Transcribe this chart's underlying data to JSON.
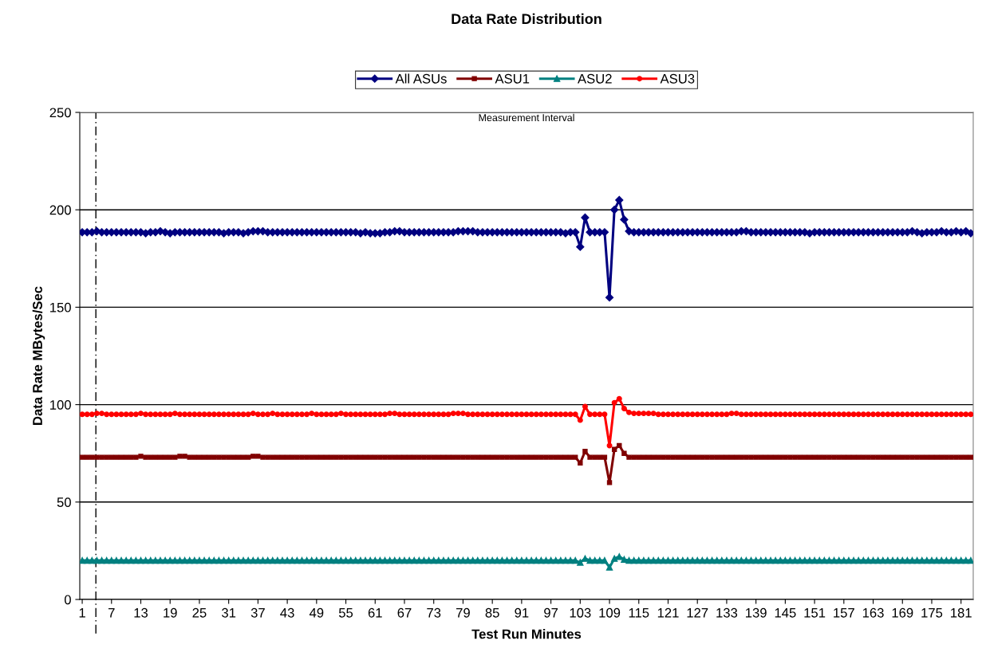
{
  "chart_data": {
    "type": "line",
    "title": "Data Rate Distribution",
    "xlabel": "Test Run Minutes",
    "ylabel": "Data Rate MBytes/Sec",
    "x": [
      1,
      2,
      3,
      4,
      5,
      6,
      7,
      8,
      9,
      10,
      11,
      12,
      13,
      14,
      15,
      16,
      17,
      18,
      19,
      20,
      21,
      22,
      23,
      24,
      25,
      26,
      27,
      28,
      29,
      30,
      31,
      32,
      33,
      34,
      35,
      36,
      37,
      38,
      39,
      40,
      41,
      42,
      43,
      44,
      45,
      46,
      47,
      48,
      49,
      50,
      51,
      52,
      53,
      54,
      55,
      56,
      57,
      58,
      59,
      60,
      61,
      62,
      63,
      64,
      65,
      66,
      67,
      68,
      69,
      70,
      71,
      72,
      73,
      74,
      75,
      76,
      77,
      78,
      79,
      80,
      81,
      82,
      83,
      84,
      85,
      86,
      87,
      88,
      89,
      90,
      91,
      92,
      93,
      94,
      95,
      96,
      97,
      98,
      99,
      100,
      101,
      102,
      103,
      104,
      105,
      106,
      107,
      108,
      109,
      110,
      111,
      112,
      113,
      114,
      115,
      116,
      117,
      118,
      119,
      120,
      121,
      122,
      123,
      124,
      125,
      126,
      127,
      128,
      129,
      130,
      131,
      132,
      133,
      134,
      135,
      136,
      137,
      138,
      139,
      140,
      141,
      142,
      143,
      144,
      145,
      146,
      147,
      148,
      149,
      150,
      151,
      152,
      153,
      154,
      155,
      156,
      157,
      158,
      159,
      160,
      161,
      162,
      163,
      164,
      165,
      166,
      167,
      168,
      169,
      170,
      171,
      172,
      173,
      174,
      175,
      176,
      177,
      178,
      179,
      180,
      181,
      182,
      183
    ],
    "xlim": [
      0.5,
      183.5
    ],
    "xticks": [
      1,
      7,
      13,
      19,
      25,
      31,
      37,
      43,
      49,
      55,
      61,
      67,
      73,
      79,
      85,
      91,
      97,
      103,
      109,
      115,
      121,
      127,
      133,
      139,
      145,
      151,
      157,
      163,
      169,
      175,
      181
    ],
    "ylim": [
      0,
      250
    ],
    "yticks": [
      0,
      50,
      100,
      150,
      200,
      250
    ],
    "grid": "y",
    "legend": "top",
    "ref_lines": [
      {
        "axis": "x",
        "value": 3.8,
        "color": "#000000",
        "line_style": "dashdot"
      }
    ],
    "annotations": [
      "Measurement Interval"
    ],
    "series": [
      {
        "name": "All ASUs",
        "color": "#000080",
        "marker": "diamond",
        "values": [
          188.5,
          188.5,
          188.5,
          189,
          188.5,
          188.5,
          188.5,
          188.5,
          188.5,
          188.5,
          188.5,
          188.5,
          188.5,
          188,
          188.5,
          188.5,
          189,
          188.5,
          188,
          188.5,
          188.5,
          188.5,
          188.5,
          188.5,
          188.5,
          188.5,
          188.5,
          188.5,
          188.5,
          188,
          188.5,
          188.5,
          188.5,
          188,
          188.5,
          189,
          189,
          189,
          188.5,
          188.5,
          188.5,
          188.5,
          188.5,
          188.5,
          188.5,
          188.5,
          188.5,
          188.5,
          188.5,
          188.5,
          188.5,
          188.5,
          188.5,
          188.5,
          188.5,
          188.5,
          188.5,
          188,
          188.5,
          188,
          188,
          188,
          188.5,
          188.5,
          189,
          189,
          188.5,
          188.5,
          188.5,
          188.5,
          188.5,
          188.5,
          188.5,
          188.5,
          188.5,
          188.5,
          188.5,
          189,
          189,
          189,
          189,
          188.5,
          188.5,
          188.5,
          188.5,
          188.5,
          188.5,
          188.5,
          188.5,
          188.5,
          188.5,
          188.5,
          188.5,
          188.5,
          188.5,
          188.5,
          188.5,
          188.5,
          188.5,
          188,
          188.5,
          188.5,
          181,
          196,
          188.5,
          188.5,
          188.5,
          188.5,
          155,
          200,
          205,
          195,
          189,
          188.5,
          188.5,
          188.5,
          188.5,
          188.5,
          188.5,
          188.5,
          188.5,
          188.5,
          188.5,
          188.5,
          188.5,
          188.5,
          188.5,
          188.5,
          188.5,
          188.5,
          188.5,
          188.5,
          188.5,
          188.5,
          188.5,
          189,
          189,
          188.5,
          188.5,
          188.5,
          188.5,
          188.5,
          188.5,
          188.5,
          188.5,
          188.5,
          188.5,
          188.5,
          188.5,
          188,
          188.5,
          188.5,
          188.5,
          188.5,
          188.5,
          188.5,
          188.5,
          188.5,
          188.5,
          188.5,
          188.5,
          188.5,
          188.5,
          188.5,
          188.5,
          188.5,
          188.5,
          188.5,
          188.5,
          188.5,
          189,
          188.5,
          188,
          188.5,
          188.5,
          188.5,
          189,
          188.5,
          188.5,
          189,
          188.5,
          189,
          188
        ]
      },
      {
        "name": "ASU1",
        "color": "#800000",
        "marker": "square",
        "values": [
          73,
          73,
          73,
          73,
          73,
          73,
          73,
          73,
          73,
          73,
          73,
          73,
          73.5,
          73,
          73,
          73,
          73,
          73,
          73,
          73,
          73.5,
          73.5,
          73,
          73,
          73,
          73,
          73,
          73,
          73,
          73,
          73,
          73,
          73,
          73,
          73,
          73.5,
          73.5,
          73,
          73,
          73,
          73,
          73,
          73,
          73,
          73,
          73,
          73,
          73,
          73,
          73,
          73,
          73,
          73,
          73,
          73,
          73,
          73,
          73,
          73,
          73,
          73,
          73,
          73,
          73,
          73,
          73,
          73,
          73,
          73,
          73,
          73,
          73,
          73,
          73,
          73,
          73,
          73,
          73,
          73,
          73,
          73,
          73,
          73,
          73,
          73,
          73,
          73,
          73,
          73,
          73,
          73,
          73,
          73,
          73,
          73,
          73,
          73,
          73,
          73,
          73,
          73,
          73,
          70,
          76,
          73,
          73,
          73,
          73,
          60,
          77,
          79,
          75,
          73,
          73,
          73,
          73,
          73,
          73,
          73,
          73,
          73,
          73,
          73,
          73,
          73,
          73,
          73,
          73,
          73,
          73,
          73,
          73,
          73,
          73,
          73,
          73,
          73,
          73,
          73,
          73,
          73,
          73,
          73,
          73,
          73,
          73,
          73,
          73,
          73,
          73,
          73,
          73,
          73,
          73,
          73,
          73,
          73,
          73,
          73,
          73,
          73,
          73,
          73,
          73,
          73,
          73,
          73,
          73,
          73,
          73,
          73,
          73,
          73,
          73,
          73,
          73,
          73,
          73,
          73,
          73,
          73,
          73,
          73
        ]
      },
      {
        "name": "ASU2",
        "color": "#008080",
        "marker": "triangle",
        "values": [
          20,
          20,
          20,
          20,
          20,
          20,
          20,
          20,
          20,
          20,
          20,
          20,
          20,
          20,
          20,
          20,
          20,
          20,
          20,
          20,
          20,
          20,
          20,
          20,
          20,
          20,
          20,
          20,
          20,
          20,
          20,
          20,
          20,
          20,
          20,
          20,
          20,
          20,
          20,
          20,
          20,
          20,
          20,
          20,
          20,
          20,
          20,
          20,
          20,
          20,
          20,
          20,
          20,
          20,
          20,
          20,
          20,
          20,
          20,
          20,
          20,
          20,
          20,
          20,
          20,
          20,
          20,
          20,
          20,
          20,
          20,
          20,
          20,
          20,
          20,
          20,
          20,
          20,
          20,
          20,
          20,
          20,
          20,
          20,
          20,
          20,
          20,
          20,
          20,
          20,
          20,
          20,
          20,
          20,
          20,
          20,
          20,
          20,
          20,
          20,
          20,
          20,
          19,
          21,
          20,
          20,
          20,
          20,
          16.5,
          21,
          22,
          20.5,
          20,
          20,
          20,
          20,
          20,
          20,
          20,
          20,
          20,
          20,
          20,
          20,
          20,
          20,
          20,
          20,
          20,
          20,
          20,
          20,
          20,
          20,
          20,
          20,
          20,
          20,
          20,
          20,
          20,
          20,
          20,
          20,
          20,
          20,
          20,
          20,
          20,
          20,
          20,
          20,
          20,
          20,
          20,
          20,
          20,
          20,
          20,
          20,
          20,
          20,
          20,
          20,
          20,
          20,
          20,
          20,
          20,
          20,
          20,
          20,
          20,
          20,
          20,
          20,
          20,
          20,
          20,
          20,
          20,
          20,
          20
        ]
      },
      {
        "name": "ASU3",
        "color": "#ff0000",
        "marker": "circle",
        "values": [
          95,
          95,
          95,
          95.5,
          95.5,
          95,
          95,
          95,
          95,
          95,
          95,
          95,
          95.5,
          95,
          95,
          95,
          95,
          95,
          95,
          95.5,
          95,
          95,
          95,
          95,
          95,
          95,
          95,
          95,
          95,
          95,
          95,
          95,
          95,
          95,
          95,
          95.5,
          95,
          95,
          95,
          95.5,
          95,
          95,
          95,
          95,
          95,
          95,
          95,
          95.5,
          95,
          95,
          95,
          95,
          95,
          95.5,
          95,
          95,
          95,
          95,
          95,
          95,
          95,
          95,
          95,
          95.5,
          95.5,
          95,
          95,
          95,
          95,
          95,
          95,
          95,
          95,
          95,
          95,
          95,
          95.5,
          95.5,
          95.5,
          95,
          95,
          95,
          95,
          95,
          95,
          95,
          95,
          95,
          95,
          95,
          95,
          95,
          95,
          95,
          95,
          95,
          95,
          95,
          95,
          95,
          95,
          95,
          92,
          99,
          95,
          95,
          95,
          95,
          79,
          101,
          103,
          98,
          96,
          95.5,
          95.5,
          95.5,
          95.5,
          95.5,
          95,
          95,
          95,
          95,
          95,
          95,
          95,
          95,
          95,
          95,
          95,
          95,
          95,
          95,
          95,
          95.5,
          95.5,
          95,
          95,
          95,
          95,
          95,
          95,
          95,
          95,
          95,
          95,
          95,
          95,
          95,
          95,
          95,
          95,
          95,
          95,
          95,
          95,
          95,
          95,
          95,
          95,
          95,
          95,
          95,
          95,
          95,
          95,
          95,
          95,
          95,
          95,
          95,
          95,
          95,
          95,
          95,
          95,
          95,
          95,
          95,
          95,
          95,
          95,
          95,
          95
        ]
      }
    ]
  }
}
